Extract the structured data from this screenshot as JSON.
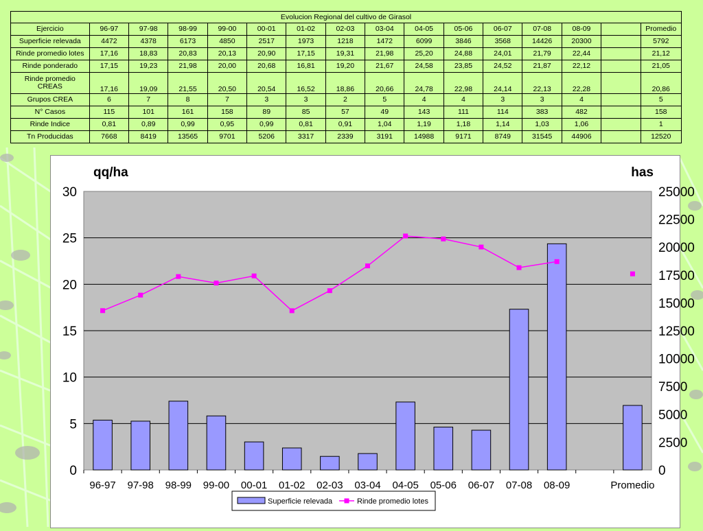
{
  "table": {
    "title": "Evolucion Regional del cultivo de Girasol",
    "header_label": "Ejercicio",
    "columns": [
      "96-97",
      "97-98",
      "98-99",
      "99-00",
      "00-01",
      "01-02",
      "02-03",
      "03-04",
      "04-05",
      "05-06",
      "06-07",
      "07-08",
      "08-09",
      "",
      "Promedio"
    ],
    "rows": [
      {
        "label": "Superficie relevada",
        "cells": [
          "4472",
          "4378",
          "6173",
          "4850",
          "2517",
          "1973",
          "1218",
          "1472",
          "6099",
          "3846",
          "3568",
          "14426",
          "20300",
          "",
          "5792"
        ]
      },
      {
        "label": "Rinde promedio lotes",
        "cells": [
          "17,16",
          "18,83",
          "20,83",
          "20,13",
          "20,90",
          "17,15",
          "19,31",
          "21,98",
          "25,20",
          "24,88",
          "24,01",
          "21,79",
          "22,44",
          "",
          "21,12"
        ]
      },
      {
        "label": "Rinde ponderado",
        "cells": [
          "17,15",
          "19,23",
          "21,98",
          "20,00",
          "20,68",
          "16,81",
          "19,20",
          "21,67",
          "24,58",
          "23,85",
          "24,52",
          "21,87",
          "22,12",
          "",
          "21,05"
        ]
      },
      {
        "label": "Rinde promedio CREAS",
        "cells": [
          "17,16",
          "19,09",
          "21,55",
          "20,50",
          "20,54",
          "16,52",
          "18,86",
          "20,66",
          "24,78",
          "22,98",
          "24,14",
          "22,13",
          "22,28",
          "",
          "20,86"
        ]
      },
      {
        "label": "Grupos CREA",
        "cells": [
          "6",
          "7",
          "8",
          "7",
          "3",
          "3",
          "2",
          "5",
          "4",
          "4",
          "3",
          "3",
          "4",
          "",
          "5"
        ]
      },
      {
        "label": "N° Casos",
        "cells": [
          "115",
          "101",
          "161",
          "158",
          "89",
          "85",
          "57",
          "49",
          "143",
          "111",
          "114",
          "383",
          "482",
          "",
          "158"
        ]
      },
      {
        "label": "Rinde Indice",
        "cells": [
          "0,81",
          "0,89",
          "0,99",
          "0,95",
          "0,99",
          "0,81",
          "0,91",
          "1,04",
          "1,19",
          "1,18",
          "1,14",
          "1,03",
          "1,06",
          "",
          "1"
        ]
      },
      {
        "label": "Tn Producidas",
        "cells": [
          "7668",
          "8419",
          "13565",
          "9701",
          "5206",
          "3317",
          "2339",
          "3191",
          "14988",
          "9171",
          "8749",
          "31545",
          "44906",
          "",
          "12520"
        ]
      }
    ]
  },
  "chart_data": {
    "type": "bar",
    "categories": [
      "96-97",
      "97-98",
      "98-99",
      "99-00",
      "00-01",
      "01-02",
      "02-03",
      "03-04",
      "04-05",
      "05-06",
      "06-07",
      "07-08",
      "08-09",
      "",
      "Promedio"
    ],
    "ylabel_left": "qq/ha",
    "ylabel_right": "has",
    "ylim_left": [
      0,
      30
    ],
    "yticks_left": [
      "0",
      "5",
      "10",
      "15",
      "20",
      "25",
      "30"
    ],
    "ylim_right": [
      0,
      25000
    ],
    "yticks_right": [
      "0",
      "2500",
      "5000",
      "7500",
      "10000",
      "12500",
      "15000",
      "17500",
      "20000",
      "22500",
      "25000"
    ],
    "grid": true,
    "legend_position": "bottom",
    "series": [
      {
        "name": "Superficie relevada",
        "type": "bar",
        "axis": "right",
        "color": "#9999ff",
        "values": [
          4472,
          4378,
          6173,
          4850,
          2517,
          1973,
          1218,
          1472,
          6099,
          3846,
          3568,
          14426,
          20300,
          null,
          5792
        ]
      },
      {
        "name": "Rinde promedio lotes",
        "type": "line",
        "axis": "left",
        "color": "#ff00ff",
        "values": [
          17.16,
          18.83,
          20.83,
          20.13,
          20.9,
          17.15,
          19.31,
          21.98,
          25.2,
          24.88,
          24.01,
          21.79,
          22.44,
          null,
          21.12
        ]
      }
    ]
  },
  "colors": {
    "background": "#ccff99",
    "plot_area": "#c0c0c0",
    "bar_fill": "#9999ff",
    "line": "#ff00ff"
  }
}
